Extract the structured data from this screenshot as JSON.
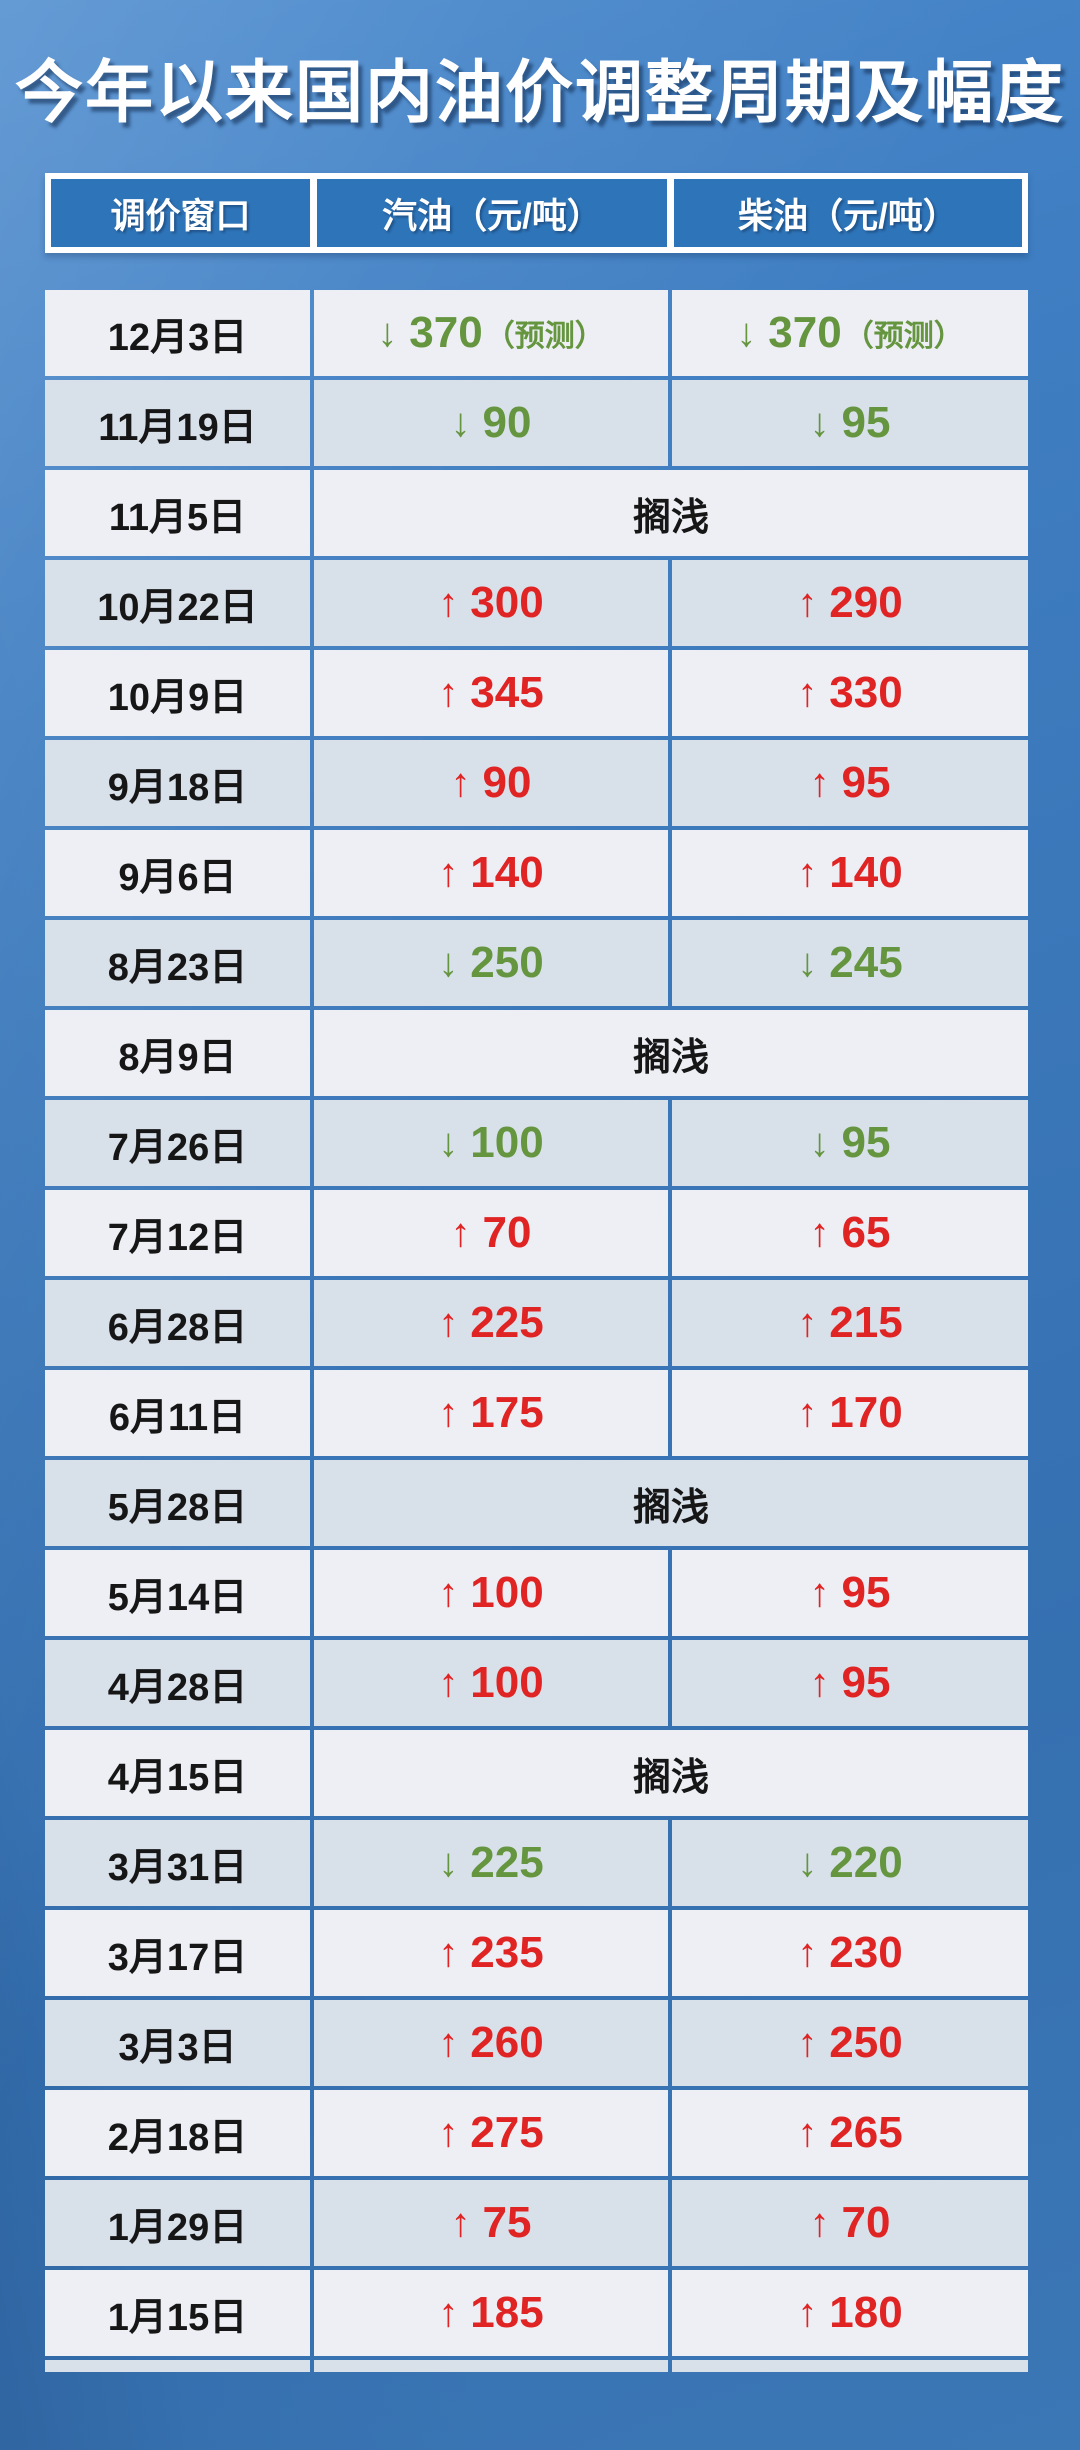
{
  "title": "今年以来国内油价调整周期及幅度",
  "table": {
    "headers": [
      "调价窗口",
      "汽油（元/吨）",
      "柴油（元/吨）"
    ],
    "rows": [
      {
        "date": "12月3日",
        "dir": "down",
        "gas": "370",
        "diesel": "370",
        "suffix": "（预测）"
      },
      {
        "date": "11月19日",
        "dir": "down",
        "gas": "90",
        "diesel": "95"
      },
      {
        "date": "11月5日",
        "status": "搁浅"
      },
      {
        "date": "10月22日",
        "dir": "up",
        "gas": "300",
        "diesel": "290"
      },
      {
        "date": "10月9日",
        "dir": "up",
        "gas": "345",
        "diesel": "330"
      },
      {
        "date": "9月18日",
        "dir": "up",
        "gas": "90",
        "diesel": "95"
      },
      {
        "date": "9月6日",
        "dir": "up",
        "gas": "140",
        "diesel": "140"
      },
      {
        "date": "8月23日",
        "dir": "down",
        "gas": "250",
        "diesel": "245"
      },
      {
        "date": "8月9日",
        "status": "搁浅"
      },
      {
        "date": "7月26日",
        "dir": "down",
        "gas": "100",
        "diesel": "95"
      },
      {
        "date": "7月12日",
        "dir": "up",
        "gas": "70",
        "diesel": "65"
      },
      {
        "date": "6月28日",
        "dir": "up",
        "gas": "225",
        "diesel": "215"
      },
      {
        "date": "6月11日",
        "dir": "up",
        "gas": "175",
        "diesel": "170"
      },
      {
        "date": "5月28日",
        "status": "搁浅"
      },
      {
        "date": "5月14日",
        "dir": "up",
        "gas": "100",
        "diesel": "95"
      },
      {
        "date": "4月28日",
        "dir": "up",
        "gas": "100",
        "diesel": "95"
      },
      {
        "date": "4月15日",
        "status": "搁浅"
      },
      {
        "date": "3月31日",
        "dir": "down",
        "gas": "225",
        "diesel": "220"
      },
      {
        "date": "3月17日",
        "dir": "up",
        "gas": "235",
        "diesel": "230"
      },
      {
        "date": "3月3日",
        "dir": "up",
        "gas": "260",
        "diesel": "250"
      },
      {
        "date": "2月18日",
        "dir": "up",
        "gas": "275",
        "diesel": "265"
      },
      {
        "date": "1月29日",
        "dir": "up",
        "gas": "75",
        "diesel": "70"
      },
      {
        "date": "1月15日",
        "dir": "up",
        "gas": "185",
        "diesel": "180"
      }
    ]
  },
  "icons": {
    "up_arrow": "↑",
    "down_arrow": "↓"
  },
  "colors": {
    "increase_red": "#e02323",
    "decrease_green": "#65953f",
    "header_blue": "#2e74b8",
    "row_light": "#edeff4",
    "row_dark": "#d8e0ea",
    "background_blue": "#3a77b9"
  },
  "chart_data": {
    "type": "table",
    "title": "今年以来国内油价调整周期及幅度",
    "columns": [
      "调价窗口",
      "汽油（元/吨）",
      "柴油（元/吨）"
    ],
    "rows": [
      [
        "12月3日",
        "↓370（预测）",
        "↓370（预测）"
      ],
      [
        "11月19日",
        "↓90",
        "↓95"
      ],
      [
        "11月5日",
        "搁浅",
        "搁浅"
      ],
      [
        "10月22日",
        "↑300",
        "↑290"
      ],
      [
        "10月9日",
        "↑345",
        "↑330"
      ],
      [
        "9月18日",
        "↑90",
        "↑95"
      ],
      [
        "9月6日",
        "↑140",
        "↑140"
      ],
      [
        "8月23日",
        "↓250",
        "↓245"
      ],
      [
        "8月9日",
        "搁浅",
        "搁浅"
      ],
      [
        "7月26日",
        "↓100",
        "↓95"
      ],
      [
        "7月12日",
        "↑70",
        "↑65"
      ],
      [
        "6月28日",
        "↑225",
        "↑215"
      ],
      [
        "6月11日",
        "↑175",
        "↑170"
      ],
      [
        "5月28日",
        "搁浅",
        "搁浅"
      ],
      [
        "5月14日",
        "↑100",
        "↑95"
      ],
      [
        "4月28日",
        "↑100",
        "↑95"
      ],
      [
        "4月15日",
        "搁浅",
        "搁浅"
      ],
      [
        "3月31日",
        "↓225",
        "↓220"
      ],
      [
        "3月17日",
        "↑235",
        "↑230"
      ],
      [
        "3月3日",
        "↑260",
        "↑250"
      ],
      [
        "2月18日",
        "↑275",
        "↑265"
      ],
      [
        "1月29日",
        "↑75",
        "↑70"
      ],
      [
        "1月15日",
        "↑185",
        "↑180"
      ]
    ]
  }
}
